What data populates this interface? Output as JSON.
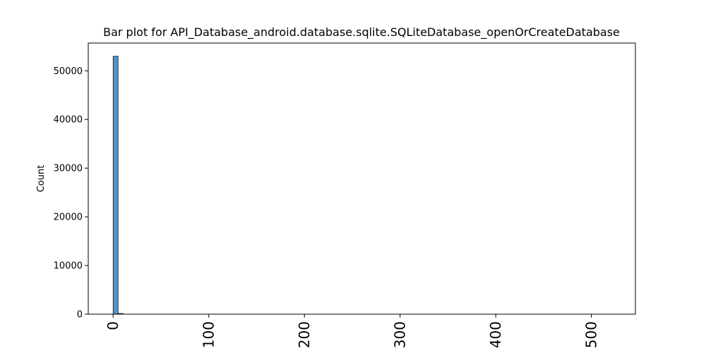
{
  "chart_data": {
    "type": "bar",
    "title": "Bar plot for API_Database_android.database.sqlite.SQLiteDatabase_openOrCreateDatabase",
    "xlabel": "",
    "ylabel": "Count",
    "xlim": [
      -26,
      546
    ],
    "ylim": [
      0,
      55700
    ],
    "x_ticks": [
      0,
      100,
      200,
      300,
      400,
      500
    ],
    "y_ticks": [
      0,
      10000,
      20000,
      30000,
      40000,
      50000
    ],
    "bin_width": 5.2,
    "bars": [
      {
        "x": 0,
        "value": 53000
      },
      {
        "x": 5.2,
        "value": 150
      }
    ],
    "bar_color": "#3d85c6",
    "grid": false
  }
}
